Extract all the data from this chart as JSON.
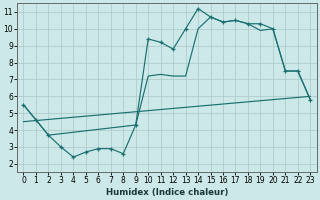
{
  "xlabel": "Humidex (Indice chaleur)",
  "xlim": [
    -0.5,
    23.5
  ],
  "ylim": [
    1.5,
    11.5
  ],
  "xticks": [
    0,
    1,
    2,
    3,
    4,
    5,
    6,
    7,
    8,
    9,
    10,
    11,
    12,
    13,
    14,
    15,
    16,
    17,
    18,
    19,
    20,
    21,
    22,
    23
  ],
  "yticks": [
    2,
    3,
    4,
    5,
    6,
    7,
    8,
    9,
    10,
    11
  ],
  "bg_color": "#cde8e8",
  "grid_color": "#b0cccc",
  "line_color": "#1a7070",
  "series1_x": [
    0,
    1,
    2,
    3,
    4,
    5,
    6,
    7,
    8,
    9,
    10,
    11,
    12,
    13,
    14,
    15,
    16,
    17,
    18,
    19,
    20,
    21,
    22,
    23
  ],
  "series1_y": [
    5.5,
    4.6,
    3.7,
    3.0,
    2.4,
    2.7,
    2.9,
    2.9,
    2.6,
    4.3,
    9.4,
    9.2,
    8.8,
    10.0,
    11.2,
    10.7,
    10.4,
    10.5,
    10.3,
    10.3,
    10.0,
    7.5,
    7.5,
    5.8
  ],
  "series2_x": [
    0,
    2,
    9,
    10,
    11,
    12,
    13,
    14,
    15,
    16,
    17,
    18,
    19,
    20,
    21,
    22,
    23
  ],
  "series2_y": [
    5.5,
    3.7,
    4.3,
    7.2,
    7.3,
    7.2,
    7.2,
    10.0,
    10.7,
    10.4,
    10.5,
    10.3,
    9.9,
    10.0,
    7.5,
    7.5,
    5.8
  ],
  "series3_x": [
    0,
    23
  ],
  "series3_y": [
    4.5,
    6.0
  ],
  "marker_x": [
    0,
    1,
    2,
    3,
    4,
    5,
    6,
    7,
    8,
    9,
    10,
    11,
    12,
    13,
    14,
    15,
    16,
    17,
    18,
    19,
    20,
    21,
    22,
    23
  ],
  "marker_y": [
    5.5,
    4.6,
    3.7,
    3.0,
    2.4,
    2.7,
    2.9,
    2.9,
    2.6,
    4.3,
    9.4,
    9.2,
    8.8,
    10.0,
    11.2,
    10.7,
    10.4,
    10.5,
    10.3,
    10.3,
    10.0,
    7.5,
    7.5,
    5.8
  ]
}
